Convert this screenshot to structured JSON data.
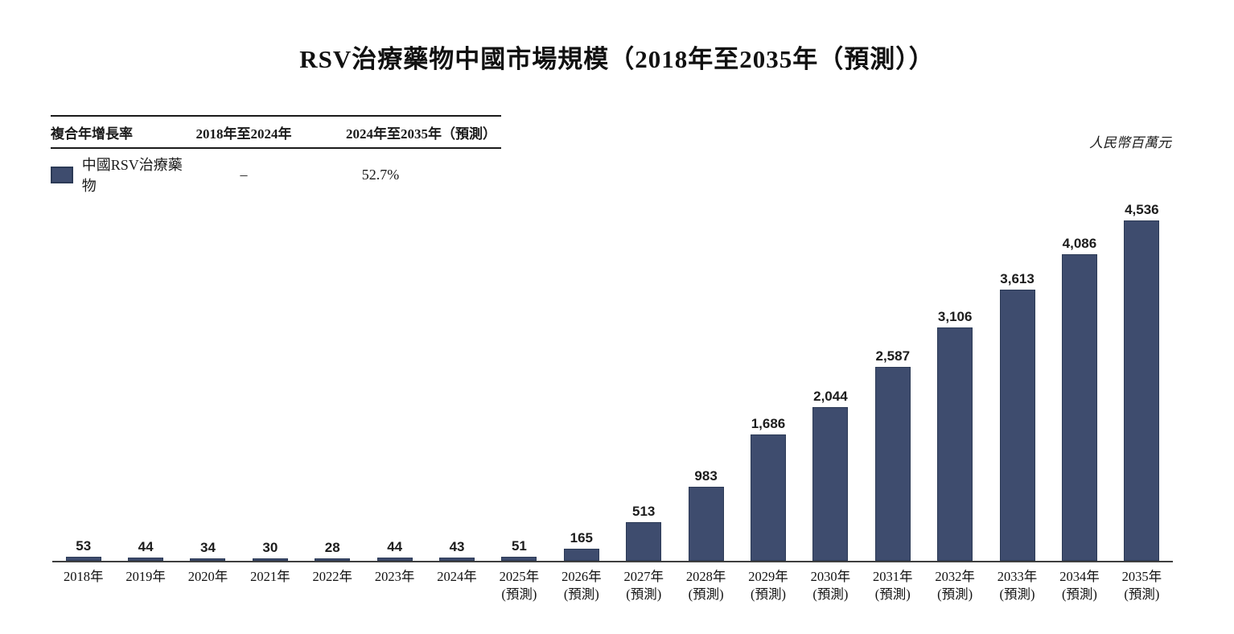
{
  "title": "RSV治療藥物中國市場規模（2018年至2035年（預測））",
  "unit_label": "人民幣百萬元",
  "colors": {
    "bar": "#3e4c6e",
    "bar_border": "#2c3a56",
    "axis": "#3f3f3f",
    "text": "#1a1a1a"
  },
  "cagr_table": {
    "headers": [
      "複合年增長率",
      "2018年至2024年",
      "2024年至2035年（預測）"
    ],
    "row": {
      "label": "中國RSV治療藥物",
      "cagr_2018_2024": "–",
      "cagr_2024_2035": "52.7%"
    }
  },
  "chart_data": {
    "type": "bar",
    "title": "RSV治療藥物中國市場規模（2018年至2035年（預測））",
    "ylabel": "人民幣百萬元",
    "series_name": "中國RSV治療藥物",
    "categories": [
      "2018年",
      "2019年",
      "2020年",
      "2021年",
      "2022年",
      "2023年",
      "2024年",
      "2025年 (預測)",
      "2026年 (預測)",
      "2027年 (預測)",
      "2028年 (預測)",
      "2029年 (預測)",
      "2030年 (預測)",
      "2031年 (預測)",
      "2032年 (預測)",
      "2033年 (預測)",
      "2034年 (預測)",
      "2035年 (預測)"
    ],
    "x_tick_lines": [
      [
        "2018年"
      ],
      [
        "2019年"
      ],
      [
        "2020年"
      ],
      [
        "2021年"
      ],
      [
        "2022年"
      ],
      [
        "2023年"
      ],
      [
        "2024年"
      ],
      [
        "2025年",
        "(預測)"
      ],
      [
        "2026年",
        "(預測)"
      ],
      [
        "2027年",
        "(預測)"
      ],
      [
        "2028年",
        "(預測)"
      ],
      [
        "2029年",
        "(預測)"
      ],
      [
        "2030年",
        "(預測)"
      ],
      [
        "2031年",
        "(預測)"
      ],
      [
        "2032年",
        "(預測)"
      ],
      [
        "2033年",
        "(預測)"
      ],
      [
        "2034年",
        "(預測)"
      ],
      [
        "2035年",
        "(預測)"
      ]
    ],
    "values": [
      53,
      44,
      34,
      30,
      28,
      44,
      43,
      51,
      165,
      513,
      983,
      1686,
      2044,
      2587,
      3106,
      3613,
      4086,
      4536
    ],
    "value_labels": [
      "53",
      "44",
      "34",
      "30",
      "28",
      "44",
      "43",
      "51",
      "165",
      "513",
      "983",
      "1,686",
      "2,044",
      "2,587",
      "3,106",
      "3,613",
      "4,086",
      "4,536"
    ],
    "ylim": [
      0,
      4536
    ],
    "forecast_from_index": 7,
    "grid": false,
    "legend_position": "table-top-left"
  }
}
